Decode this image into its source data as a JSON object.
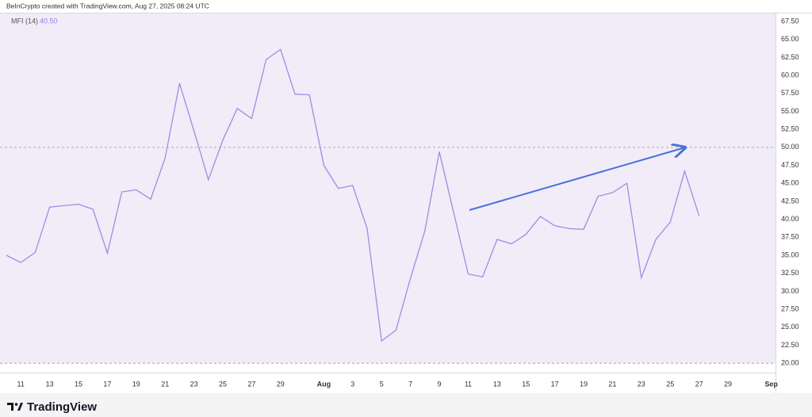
{
  "chart_data": {
    "type": "line",
    "caption": "BeInCrypto created with TradingView.com, Aug 27, 2025 08:24 UTC",
    "brand": "TradingView",
    "legend_value": "40.50",
    "categories": [
      null,
      "11",
      null,
      "13",
      null,
      "15",
      null,
      "17",
      null,
      "19",
      null,
      "21",
      null,
      "23",
      null,
      "25",
      null,
      "27",
      null,
      "29",
      null,
      null,
      "Aug",
      null,
      "3",
      null,
      "5",
      null,
      "7",
      null,
      "9",
      null,
      "11",
      null,
      "13",
      null,
      "15",
      null,
      "17",
      null,
      "19",
      null,
      "21",
      null,
      "23",
      null,
      "25",
      null,
      "27",
      null,
      "29",
      null,
      null,
      "Sep"
    ],
    "series": [
      {
        "name": "MFI (14)",
        "color": "#a08ddf",
        "values": [
          35.0,
          34.0,
          35.4,
          41.7,
          41.9,
          42.1,
          41.4,
          35.3,
          43.8,
          44.1,
          42.8,
          48.5,
          58.9,
          52.3,
          45.5,
          51.0,
          55.4,
          54.0,
          62.2,
          63.6,
          57.4,
          57.3,
          47.5,
          44.3,
          44.7,
          38.7,
          23.1,
          24.6,
          31.8,
          38.4,
          49.4,
          40.9,
          32.4,
          32.0,
          37.2,
          36.6,
          37.9,
          40.4,
          39.1,
          38.7,
          38.6,
          43.2,
          43.7,
          45.0,
          31.9,
          37.2,
          39.6,
          46.7,
          40.5,
          null,
          null,
          null,
          null,
          null
        ]
      }
    ],
    "ylim": [
      18.7,
      68.6
    ],
    "yticks": [
      {
        "value": 20,
        "label": "20.00"
      },
      {
        "value": 22.5,
        "label": "22.50"
      },
      {
        "value": 25,
        "label": "25.00"
      },
      {
        "value": 27.5,
        "label": "27.50"
      },
      {
        "value": 30,
        "label": "30.00"
      },
      {
        "value": 32.5,
        "label": "32.50"
      },
      {
        "value": 35,
        "label": "35.00"
      },
      {
        "value": 37.5,
        "label": "37.50"
      },
      {
        "value": 40,
        "label": "40.00"
      },
      {
        "value": 42.5,
        "label": "42.50"
      },
      {
        "value": 45,
        "label": "45.00"
      },
      {
        "value": 47.5,
        "label": "47.50"
      },
      {
        "value": 50,
        "label": "50.00"
      },
      {
        "value": 52.5,
        "label": "52.50"
      },
      {
        "value": 55,
        "label": "55.00"
      },
      {
        "value": 57.5,
        "label": "57.50"
      },
      {
        "value": 60,
        "label": "60.00"
      },
      {
        "value": 62.5,
        "label": "62.50"
      },
      {
        "value": 65,
        "label": "65.00"
      },
      {
        "value": 67.5,
        "label": "67.50"
      }
    ],
    "levels": [
      20,
      50
    ],
    "band_color": "#f1ecf8"
  }
}
